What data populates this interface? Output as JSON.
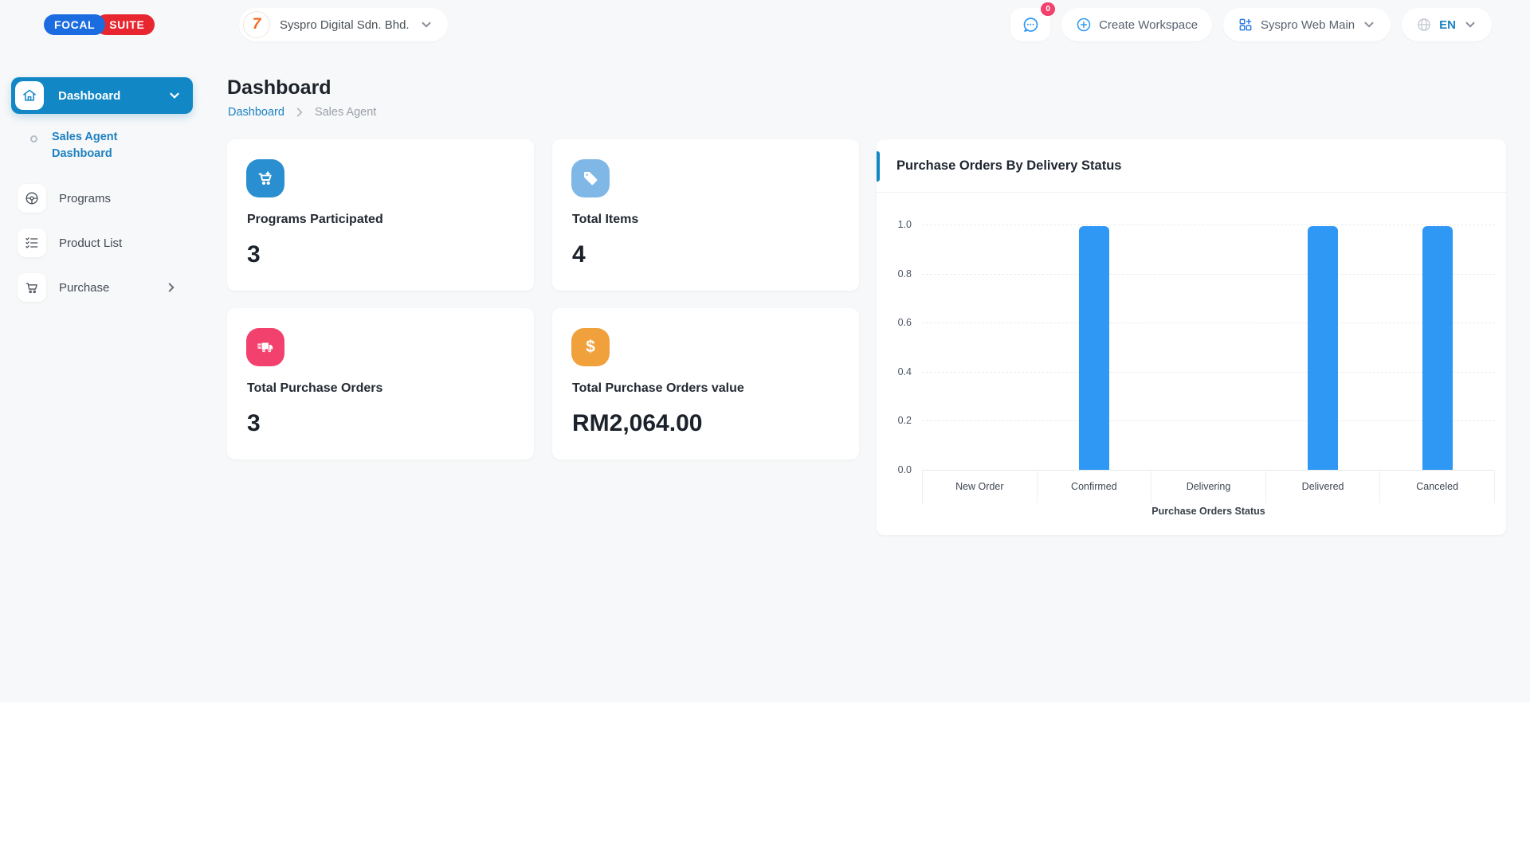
{
  "brand": {
    "name_primary": "FOCAL",
    "name_secondary": "SUITE"
  },
  "topbar": {
    "workspace": {
      "label": "Syspro Digital Sdn. Bhd.",
      "logo_icon": "syspro-logo-icon",
      "logo_glyph": "7"
    },
    "chat": {
      "icon": "chat-bubble-icon",
      "badge": "0"
    },
    "create_workspace": {
      "label": "Create Workspace",
      "icon": "plus-circle-icon"
    },
    "app_switcher": {
      "label": "Syspro Web Main",
      "icon": "grid-plus-icon"
    },
    "language": {
      "label": "EN",
      "icon": "globe-icon"
    }
  },
  "sidebar": {
    "items": [
      {
        "label": "Dashboard",
        "icon": "home-icon",
        "active": true,
        "expanded": true
      },
      {
        "label": "Sales Agent Dashboard",
        "active": true
      },
      {
        "label": "Programs",
        "icon": "steering-wheel-icon"
      },
      {
        "label": "Product List",
        "icon": "checklist-icon"
      },
      {
        "label": "Purchase",
        "icon": "cart-icon",
        "has_submenu": true
      }
    ]
  },
  "page": {
    "title": "Dashboard",
    "breadcrumb": {
      "parent": "Dashboard",
      "current": "Sales Agent"
    }
  },
  "stats": [
    {
      "label": "Programs Participated",
      "value": "3",
      "icon": "cart-plus-icon",
      "icon_bg": "#2a8fd0"
    },
    {
      "label": "Total Items",
      "value": "4",
      "icon": "tag-icon",
      "icon_bg": "#7fb8e6"
    },
    {
      "label": "Total Purchase Orders",
      "value": "3",
      "icon": "delivery-truck-icon",
      "icon_bg": "#f1416c"
    },
    {
      "label": "Total Purchase Orders value",
      "value": "RM2,064.00",
      "icon": "dollar-icon",
      "icon_bg": "#f0a13c"
    }
  ],
  "chart_data": {
    "type": "bar",
    "title": "Purchase Orders By Delivery Status",
    "categories": [
      "New Order",
      "Confirmed",
      "Delivering",
      "Delivered",
      "Canceled"
    ],
    "values": [
      0,
      1,
      0,
      1,
      1
    ],
    "xlabel": "Purchase Orders Status",
    "ylabel": "",
    "ylim": [
      0,
      1
    ],
    "yticks": [
      "1.0",
      "0.8",
      "0.6",
      "0.4",
      "0.2",
      "0.0"
    ],
    "bar_color": "#2f97f4",
    "grid": "dashed-horizontal",
    "legend": "none"
  },
  "colors": {
    "accent_blue": "#1287c5",
    "link_blue": "#1a82c4",
    "badge_red": "#f1416c",
    "bar_blue": "#2f97f4",
    "app_bg": "#f7f8f9"
  }
}
